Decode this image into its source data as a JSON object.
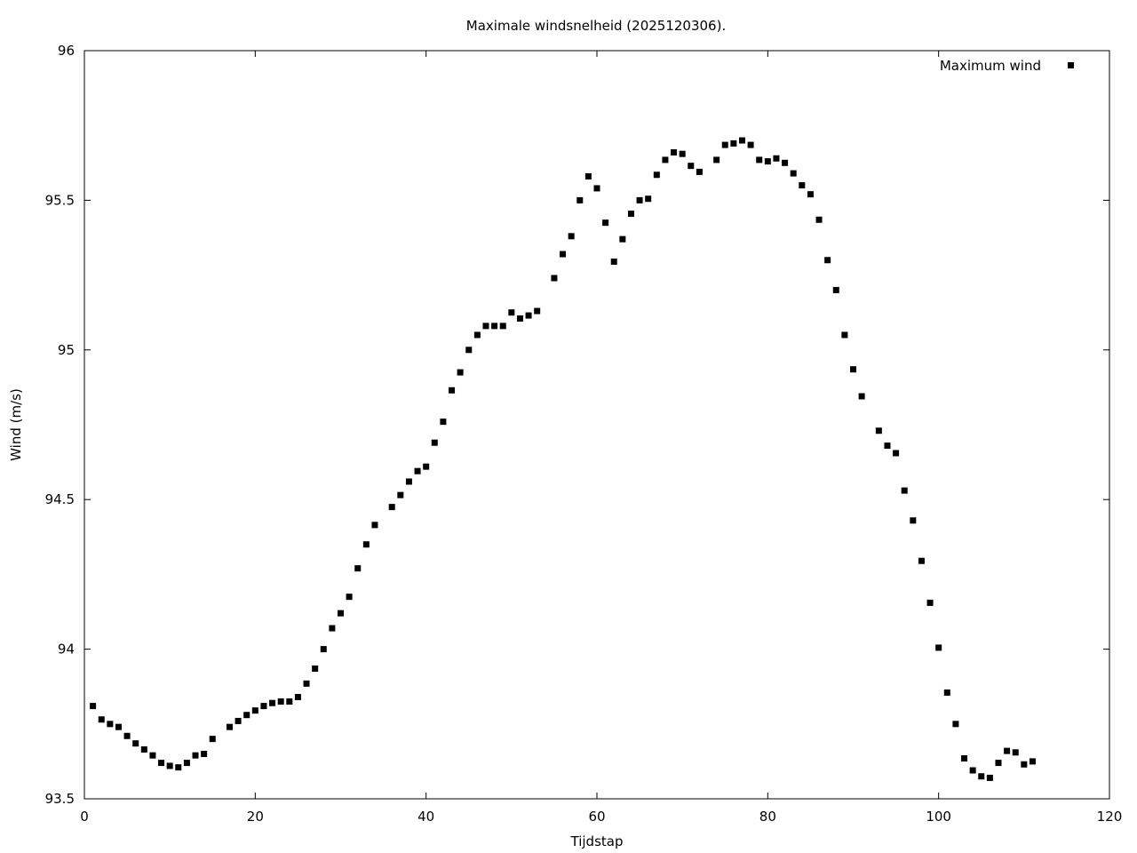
{
  "chart_data": {
    "type": "scatter",
    "title": "Maximale windsnelheid (2025120306).",
    "xlabel": "Tijdstap",
    "ylabel": "Wind (m/s)",
    "xlim": [
      0,
      120
    ],
    "ylim": [
      93.5,
      96
    ],
    "xticks": [
      "0",
      "20",
      "40",
      "60",
      "80",
      "100",
      "120"
    ],
    "yticks": [
      "93.5",
      "94",
      "94.5",
      "95",
      "95.5",
      "96"
    ],
    "grid": false,
    "legend_position": "top-right",
    "series": [
      {
        "name": "Maximum wind",
        "color": "#000000",
        "marker": "square",
        "x": [
          1,
          2,
          3,
          4,
          5,
          6,
          7,
          8,
          9,
          10,
          11,
          12,
          13,
          14,
          15,
          17,
          18,
          19,
          20,
          21,
          22,
          23,
          24,
          25,
          26,
          27,
          28,
          29,
          30,
          31,
          32,
          33,
          34,
          36,
          37,
          38,
          39,
          40,
          41,
          42,
          43,
          44,
          45,
          46,
          47,
          48,
          49,
          50,
          51,
          52,
          53,
          55,
          56,
          57,
          58,
          59,
          60,
          61,
          62,
          63,
          64,
          65,
          66,
          67,
          68,
          69,
          70,
          71,
          72,
          74,
          75,
          76,
          77,
          78,
          79,
          80,
          81,
          82,
          83,
          84,
          85,
          86,
          87,
          88,
          89,
          90,
          91,
          93,
          94,
          95,
          96,
          97,
          98,
          99,
          100,
          101,
          102,
          103,
          104,
          105,
          106,
          107,
          108,
          109,
          110,
          111
        ],
        "y": [
          93.81,
          93.765,
          93.75,
          93.74,
          93.71,
          93.685,
          93.665,
          93.645,
          93.62,
          93.61,
          93.605,
          93.62,
          93.645,
          93.65,
          93.7,
          93.74,
          93.76,
          93.78,
          93.795,
          93.81,
          93.82,
          93.825,
          93.825,
          93.84,
          93.885,
          93.935,
          94.0,
          94.07,
          94.12,
          94.175,
          94.27,
          94.35,
          94.415,
          94.475,
          94.515,
          94.56,
          94.595,
          94.61,
          94.69,
          94.76,
          94.865,
          94.925,
          95.0,
          95.05,
          95.08,
          95.08,
          95.08,
          95.125,
          95.105,
          95.115,
          95.13,
          95.24,
          95.32,
          95.38,
          95.5,
          95.58,
          95.54,
          95.425,
          95.295,
          95.37,
          95.455,
          95.5,
          95.505,
          95.585,
          95.635,
          95.66,
          95.655,
          95.615,
          95.595,
          95.635,
          95.685,
          95.69,
          95.7,
          95.685,
          95.635,
          95.63,
          95.64,
          95.625,
          95.59,
          95.55,
          95.52,
          95.435,
          95.3,
          95.2,
          95.05,
          94.935,
          94.845,
          94.73,
          94.68,
          94.655,
          94.53,
          94.43,
          94.295,
          94.155,
          94.005,
          93.855,
          93.75,
          93.635,
          93.595,
          93.575,
          93.57,
          93.62,
          93.66,
          93.655,
          93.615,
          93.625
        ]
      }
    ]
  }
}
